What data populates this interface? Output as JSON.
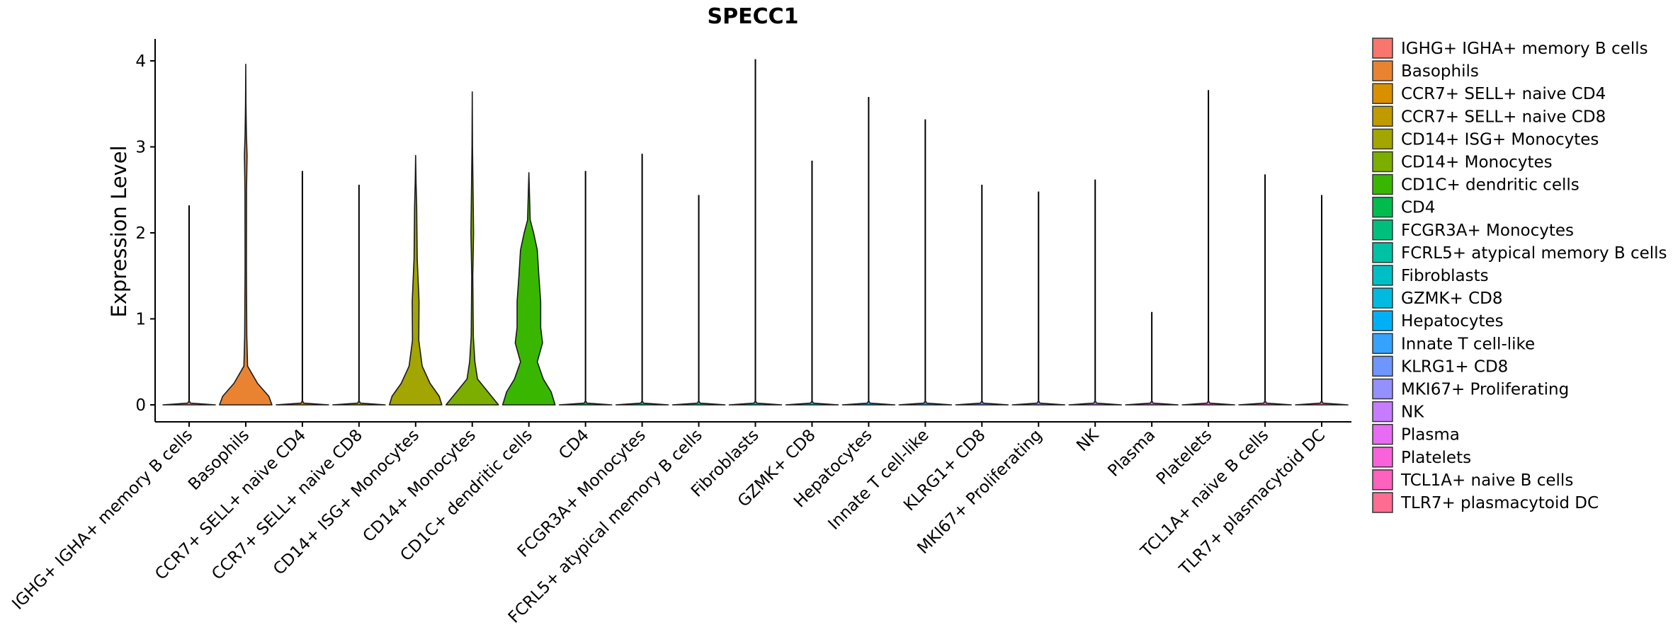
{
  "chart_data": {
    "type": "violin",
    "title": "SPECC1",
    "ylabel": "Expression Level",
    "xlabel": "",
    "ylim": [
      -0.2,
      4.2
    ],
    "yticks": [
      0,
      1,
      2,
      3,
      4
    ],
    "legend_position": "right",
    "categories": [
      "IGHG+ IGHA+ memory B cells",
      "Basophils",
      "CCR7+ SELL+ naive CD4",
      "CCR7+ SELL+ naive CD8",
      "CD14+ ISG+ Monocytes",
      "CD14+ Monocytes",
      "CD1C+ dendritic cells",
      "CD4",
      "FCGR3A+ Monocytes",
      "FCRL5+ atypical memory B cells",
      "Fibroblasts",
      "GZMK+ CD8",
      "Hepatocytes",
      "Innate T cell-like",
      "KLRG1+ CD8",
      "MKI67+ Proliferating",
      "NK",
      "Plasma",
      "Platelets",
      "TCL1A+ naive B cells",
      "TLR7+ plasmacytoid DC"
    ],
    "legend_labels": [
      " IGHG+ IGHA+ memory B cells",
      "Basophils",
      "CCR7+ SELL+ naive CD4",
      "CCR7+ SELL+ naive CD8",
      "CD14+ ISG+ Monocytes",
      "CD14+ Monocytes",
      "CD1C+ dendritic cells",
      "CD4",
      "FCGR3A+ Monocytes",
      "FCRL5+ atypical memory B cells",
      "Fibroblasts",
      "GZMK+ CD8",
      "Hepatocytes",
      "Innate T cell-like",
      "KLRG1+ CD8",
      "MKI67+ Proliferating",
      "NK",
      "Plasma",
      "Platelets",
      "TCL1A+ naive B cells",
      "TLR7+ plasmacytoid DC"
    ],
    "colors": [
      "#F8766D",
      "#EA8331",
      "#D89000",
      "#C09B00",
      "#A3A500",
      "#7CAE00",
      "#39B600",
      "#00BB4E",
      "#00BF7D",
      "#00C1A3",
      "#00BFC4",
      "#00BAE0",
      "#00B0F6",
      "#35A2FF",
      "#6F95FF",
      "#9590FF",
      "#C77CFF",
      "#E76BF3",
      "#FA62DB",
      "#FF62BC",
      "#FF6C91"
    ],
    "max_values": [
      2.32,
      3.96,
      2.72,
      2.56,
      2.9,
      3.64,
      2.7,
      2.72,
      2.92,
      2.44,
      4.02,
      2.84,
      3.58,
      3.32,
      2.56,
      2.48,
      2.62,
      1.08,
      3.66,
      2.68,
      2.44
    ],
    "density_profiles": [
      [
        [
          0,
          1
        ],
        [
          0.02,
          0.05
        ],
        [
          0.05,
          0
        ]
      ],
      [
        [
          0,
          1
        ],
        [
          0.1,
          0.88
        ],
        [
          0.25,
          0.45
        ],
        [
          0.45,
          0.07
        ],
        [
          0.8,
          0.04
        ],
        [
          1.6,
          0.025
        ],
        [
          2.5,
          0.03
        ],
        [
          2.9,
          0.05
        ],
        [
          3.15,
          0.025
        ],
        [
          3.5,
          0.008
        ],
        [
          3.96,
          0
        ]
      ],
      [
        [
          0,
          1
        ],
        [
          0.02,
          0.05
        ],
        [
          0.05,
          0
        ]
      ],
      [
        [
          0,
          1
        ],
        [
          0.02,
          0.05
        ],
        [
          0.05,
          0
        ]
      ],
      [
        [
          0,
          1
        ],
        [
          0.1,
          0.9
        ],
        [
          0.25,
          0.55
        ],
        [
          0.45,
          0.25
        ],
        [
          0.75,
          0.12
        ],
        [
          1.2,
          0.13
        ],
        [
          1.7,
          0.06
        ],
        [
          2.3,
          0.04
        ],
        [
          2.6,
          0.015
        ],
        [
          2.9,
          0
        ]
      ],
      [
        [
          0,
          1
        ],
        [
          0.15,
          0.6
        ],
        [
          0.3,
          0.2
        ],
        [
          0.5,
          0.1
        ],
        [
          0.8,
          0.04
        ],
        [
          1.5,
          0.02
        ],
        [
          2.0,
          0.05
        ],
        [
          2.5,
          0.03
        ],
        [
          3.0,
          0.01
        ],
        [
          3.64,
          0
        ]
      ],
      [
        [
          0,
          1
        ],
        [
          0.15,
          0.85
        ],
        [
          0.3,
          0.55
        ],
        [
          0.5,
          0.32
        ],
        [
          0.72,
          0.52
        ],
        [
          0.9,
          0.45
        ],
        [
          1.2,
          0.45
        ],
        [
          1.5,
          0.38
        ],
        [
          1.8,
          0.32
        ],
        [
          2.0,
          0.18
        ],
        [
          2.15,
          0.05
        ],
        [
          2.7,
          0
        ]
      ],
      [
        [
          0,
          1
        ],
        [
          0.02,
          0.05
        ],
        [
          0.05,
          0
        ]
      ],
      [
        [
          0,
          1
        ],
        [
          0.02,
          0.05
        ],
        [
          0.05,
          0
        ]
      ],
      [
        [
          0,
          1
        ],
        [
          0.02,
          0.05
        ],
        [
          0.05,
          0
        ]
      ],
      [
        [
          0,
          1
        ],
        [
          0.02,
          0.05
        ],
        [
          0.05,
          0
        ]
      ],
      [
        [
          0,
          1
        ],
        [
          0.02,
          0.05
        ],
        [
          0.05,
          0
        ]
      ],
      [
        [
          0,
          1
        ],
        [
          0.02,
          0.05
        ],
        [
          0.05,
          0
        ]
      ],
      [
        [
          0,
          1
        ],
        [
          0.02,
          0.05
        ],
        [
          0.05,
          0
        ]
      ],
      [
        [
          0,
          1
        ],
        [
          0.02,
          0.05
        ],
        [
          0.05,
          0
        ]
      ],
      [
        [
          0,
          1
        ],
        [
          0.02,
          0.05
        ],
        [
          0.05,
          0
        ]
      ],
      [
        [
          0,
          1
        ],
        [
          0.02,
          0.05
        ],
        [
          0.05,
          0
        ]
      ],
      [
        [
          0,
          1
        ],
        [
          0.02,
          0.05
        ],
        [
          0.05,
          0
        ]
      ],
      [
        [
          0,
          1
        ],
        [
          0.02,
          0.05
        ],
        [
          0.05,
          0
        ]
      ],
      [
        [
          0,
          1
        ],
        [
          0.02,
          0.05
        ],
        [
          0.05,
          0
        ]
      ],
      [
        [
          0,
          1
        ],
        [
          0.02,
          0.05
        ],
        [
          0.05,
          0
        ]
      ]
    ]
  }
}
